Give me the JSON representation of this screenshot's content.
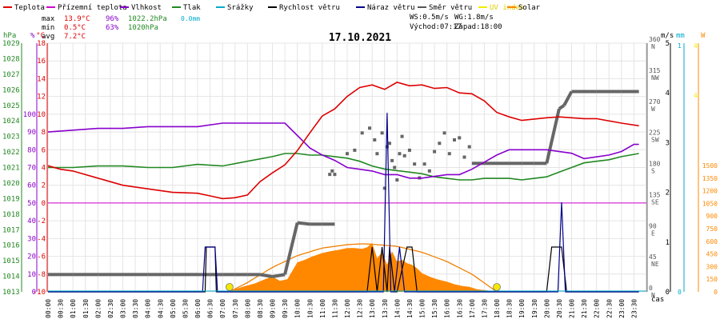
{
  "legend": [
    {
      "label": "Teplota",
      "color": "#dd0000"
    },
    {
      "label": "Přízemní teplota",
      "color": "#d000d0"
    },
    {
      "label": "Vlhkost",
      "color": "#8800cc"
    },
    {
      "label": "Tlak",
      "color": "#228822"
    },
    {
      "label": "Srážky",
      "color": "#00aacc"
    },
    {
      "label": "Rychlost větru",
      "color": "#000000"
    },
    {
      "label": "Náraz větru",
      "color": "#000088"
    },
    {
      "label": "Směr větru",
      "color": "#555555"
    },
    {
      "label": "UV index",
      "color": "#eeee00"
    },
    {
      "label": "Solar",
      "color": "#ff8800"
    }
  ],
  "stats": {
    "max_label": "max",
    "max_temp": "13.9°C",
    "max_hum": "96%",
    "max_press": "1022.2hPa",
    "max_rain": "0.0mm",
    "min_label": "min",
    "min_temp": "0.5°C",
    "min_hum": "63%",
    "min_press": "1020hPa",
    "avg_label": "avg",
    "avg_temp": "7.2°C"
  },
  "wind_info": {
    "ws": "WS:0.5m/s",
    "wg": "WG:1.8m/s",
    "sunrise": "Východ:07:17",
    "sunset": "Západ:18:00"
  },
  "colors": {
    "temp": "#dd0000",
    "ground": "#d000d0",
    "hum": "#8800cc",
    "press": "#228822",
    "rain": "#00aacc",
    "speed": "#000000",
    "gust": "#000088",
    "dir": "#666666",
    "uv": "#eeee00",
    "solar": "#ff8800",
    "solar_max": "#f08000"
  },
  "chart_data": {
    "type": "line",
    "title": "17.10.2021",
    "axes": {
      "hpa": {
        "label": "hPa",
        "ticks": [
          "1013",
          "1014",
          "1015",
          "1016",
          "1017",
          "1018",
          "1019",
          "1020",
          "1021",
          "1022",
          "1023",
          "1024",
          "1025",
          "1026",
          "1027",
          "1028",
          "1029"
        ]
      },
      "pct": {
        "label": "%",
        "ticks": [
          "0",
          "10",
          "20",
          "30",
          "40",
          "50",
          "60",
          "70",
          "80",
          "90",
          "100"
        ]
      },
      "celsius": {
        "label": "°C",
        "ticks": [
          "-10",
          "-8",
          "-6",
          "-4",
          "-2",
          "0",
          "2",
          "4",
          "6",
          "8",
          "10",
          "12",
          "14",
          "16",
          "18"
        ]
      },
      "ms": {
        "label": "m/s",
        "ticks": [
          "0",
          "1",
          "2",
          "3",
          "4",
          "5"
        ]
      },
      "dir": {
        "ticks": [
          "0",
          "45",
          "90",
          "135",
          "180",
          "225",
          "270",
          "315",
          "360"
        ],
        "names": [
          "N",
          "NE",
          "E",
          "SE",
          "S",
          "SW",
          "W",
          "NW",
          "N"
        ]
      },
      "mm": {
        "label": "mm",
        "ticks": [
          "0",
          "1"
        ]
      },
      "solar": {
        "label": "W",
        "ticks": [
          "0",
          "150",
          "300",
          "450",
          "600",
          "750",
          "900",
          "1050",
          "1200",
          "1350",
          "1500"
        ]
      },
      "x": {
        "label": "čas",
        "ticks": [
          "00:00",
          "00:30",
          "01:00",
          "01:30",
          "02:00",
          "02:30",
          "03:00",
          "03:30",
          "04:00",
          "04:30",
          "05:00",
          "05:30",
          "06:00",
          "06:30",
          "07:00",
          "07:30",
          "08:00",
          "08:30",
          "09:00",
          "09:30",
          "10:00",
          "10:30",
          "11:00",
          "11:30",
          "12:00",
          "12:30",
          "13:00",
          "13:30",
          "14:00",
          "14:30",
          "15:00",
          "15:30",
          "16:00",
          "16:30",
          "17:00",
          "17:30",
          "18:00",
          "18:30",
          "19:00",
          "19:30",
          "20:00",
          "20:30",
          "21:00",
          "21:30",
          "22:00",
          "22:30",
          "23:00",
          "23:30"
        ]
      }
    },
    "series": [
      {
        "name": "Teplota",
        "unit": "°C",
        "x": [
          0,
          0.5,
          1,
          2,
          3,
          4,
          5,
          6,
          6.5,
          7,
          7.5,
          8,
          8.5,
          9,
          9.5,
          10,
          10.5,
          11,
          11.5,
          12,
          12.5,
          13,
          13.5,
          14,
          14.5,
          15,
          15.5,
          16,
          16.5,
          17,
          17.5,
          18,
          18.5,
          19,
          20,
          20.5,
          21,
          21.5,
          22,
          23,
          23.7
        ],
        "y": [
          4.2,
          3.8,
          3.6,
          2.8,
          2.0,
          1.6,
          1.2,
          1.1,
          0.8,
          0.5,
          0.6,
          0.9,
          2.4,
          3.4,
          4.3,
          5.9,
          7.9,
          9.8,
          10.6,
          12.0,
          13.0,
          13.3,
          12.8,
          13.6,
          13.2,
          13.3,
          12.9,
          13.0,
          12.4,
          12.3,
          11.5,
          10.2,
          9.7,
          9.3,
          9.6,
          9.7,
          9.6,
          9.5,
          9.5,
          9.0,
          8.7
        ]
      },
      {
        "name": "Přízemní teplota",
        "unit": "°C",
        "x": [
          0,
          23.7
        ],
        "y": [
          0,
          0
        ]
      },
      {
        "name": "Vlhkost",
        "unit": "%",
        "x": [
          0,
          1,
          2,
          3,
          4,
          5,
          6,
          7,
          8,
          9,
          9.5,
          10,
          10.5,
          11,
          11.5,
          12,
          12.5,
          13,
          13.5,
          14,
          14.5,
          15,
          15.5,
          16,
          16.5,
          17,
          17.5,
          18,
          18.5,
          19,
          19.5,
          20,
          21,
          21.5,
          22,
          22.5,
          23,
          23.5,
          23.7
        ],
        "y": [
          90,
          91,
          92,
          92,
          93,
          93,
          93,
          95,
          95,
          95,
          95,
          88,
          81,
          77,
          74,
          70,
          69,
          68,
          66,
          66,
          64,
          64,
          65,
          66,
          66,
          69,
          73,
          77,
          80,
          80,
          80,
          80,
          78,
          75,
          76,
          77,
          79,
          83,
          83
        ]
      },
      {
        "name": "Tlak",
        "unit": "hPa",
        "x": [
          0,
          1,
          2,
          3,
          4,
          5,
          6,
          7,
          8,
          9,
          9.5,
          10,
          10.5,
          11,
          11.5,
          12,
          12.5,
          13,
          13.5,
          14,
          14.5,
          15,
          15.5,
          16,
          16.5,
          17,
          17.5,
          18,
          18.5,
          19,
          19.5,
          20,
          20.5,
          21,
          21.5,
          22,
          22.5,
          23,
          23.7
        ],
        "y": [
          1021,
          1021,
          1021.1,
          1021.1,
          1021,
          1021,
          1021.2,
          1021.1,
          1021.4,
          1021.7,
          1021.9,
          1021.9,
          1021.8,
          1021.8,
          1021.7,
          1021.6,
          1021.4,
          1021.1,
          1020.9,
          1020.8,
          1020.7,
          1020.6,
          1020.4,
          1020.3,
          1020.2,
          1020.2,
          1020.3,
          1020.3,
          1020.3,
          1020.2,
          1020.3,
          1020.4,
          1020.7,
          1021,
          1021.3,
          1021.4,
          1021.5,
          1021.7,
          1021.9
        ]
      },
      {
        "name": "Srážky",
        "unit": "mm",
        "x": [
          0,
          23.7
        ],
        "y": [
          0,
          0
        ]
      },
      {
        "name": "Rychlost větru",
        "unit": "m/s",
        "x": [
          0,
          6.3,
          6.35,
          6.7,
          6.75,
          12.8,
          13.0,
          13.2,
          13.4,
          13.6,
          13.7,
          13.9,
          14.0,
          14.4,
          14.6,
          14.8,
          20.0,
          20.2,
          20.6,
          20.8,
          23.7
        ],
        "y": [
          0,
          0,
          0.9,
          0.9,
          0,
          0,
          0.9,
          0,
          0.9,
          0,
          0.9,
          0,
          0,
          0.9,
          0.9,
          0,
          0,
          0.9,
          0.9,
          0,
          0
        ]
      },
      {
        "name": "Náraz větru",
        "unit": "m/s",
        "x": [
          0,
          6.2,
          6.3,
          6.4,
          6.6,
          6.7,
          6.8,
          13.45,
          13.6,
          13.75,
          13.9,
          14.1,
          14.3,
          20.45,
          20.6,
          20.75,
          23.7
        ],
        "y": [
          0,
          0,
          0.9,
          0.9,
          0.9,
          0.9,
          0,
          0,
          3.6,
          0,
          0,
          0.9,
          0,
          0,
          1.8,
          0,
          0
        ]
      },
      {
        "name": "Směr větru",
        "unit": "°",
        "x": [
          0,
          1,
          2,
          3,
          4,
          5,
          6,
          6.5,
          7,
          7.5,
          8,
          8.5,
          9,
          9.5,
          10,
          10.5,
          11,
          11.5,
          17,
          17.5,
          18,
          18.5,
          19,
          19.5,
          20,
          20.5,
          20.7,
          21,
          22,
          23,
          23.7
        ],
        "y": [
          25,
          25,
          25,
          25,
          25,
          25,
          25,
          25,
          25,
          25,
          25,
          25,
          22,
          25,
          100,
          98,
          98,
          98,
          186,
          186,
          186,
          186,
          186,
          186,
          186,
          265,
          270,
          290,
          290,
          290,
          290
        ]
      },
      {
        "name": "Směr větru (body)",
        "unit": "°",
        "x": [
          11.3,
          11.4,
          11.5,
          12.0,
          12.3,
          12.6,
          12.9,
          13.1,
          13.2,
          13.4,
          13.5,
          13.6,
          13.7,
          13.8,
          13.9,
          14.0,
          14.1,
          14.2,
          14.3,
          14.5,
          14.7,
          14.9,
          15.1,
          15.3,
          15.5,
          15.7,
          15.9,
          16.1,
          16.3,
          16.5,
          16.7,
          16.9
        ],
        "y": [
          170,
          175,
          170,
          200,
          205,
          230,
          237,
          220,
          200,
          230,
          150,
          210,
          215,
          190,
          180,
          162,
          200,
          225,
          197,
          205,
          185,
          165,
          185,
          175,
          203,
          215,
          230,
          200,
          220,
          223,
          195,
          210
        ]
      },
      {
        "name": "UV index",
        "x": [
          0,
          23.7
        ],
        "y": [
          0,
          0
        ]
      },
      {
        "name": "Solar",
        "unit": "W",
        "x": [
          7.3,
          7.8,
          8.3,
          8.7,
          9.0,
          9.3,
          9.6,
          9.8,
          10.0,
          10.3,
          10.6,
          11.0,
          11.3,
          11.7,
          12.0,
          12.3,
          12.6,
          12.8,
          13.0,
          13.2,
          13.4,
          13.6,
          13.8,
          14.0,
          14.2,
          14.4,
          14.6,
          14.8,
          15.0,
          15.3,
          15.6,
          16.0,
          16.3,
          16.6,
          16.9,
          17.2,
          17.5,
          17.8
        ],
        "y": [
          10,
          60,
          100,
          150,
          180,
          130,
          150,
          250,
          350,
          380,
          420,
          460,
          480,
          500,
          520,
          520,
          510,
          530,
          580,
          400,
          470,
          320,
          480,
          360,
          380,
          340,
          320,
          280,
          220,
          180,
          150,
          120,
          90,
          70,
          60,
          30,
          20,
          10
        ]
      },
      {
        "name": "Solar max",
        "unit": "W",
        "x": [
          7.28,
          8,
          9,
          10,
          11,
          12,
          12.6,
          13,
          14,
          15,
          16,
          17,
          18.0
        ],
        "y": [
          0,
          110,
          290,
          430,
          520,
          560,
          570,
          565,
          540,
          470,
          360,
          210,
          0
        ]
      }
    ],
    "markers": [
      {
        "name": "Východ",
        "x": 7.28
      },
      {
        "name": "Západ",
        "x": 18.0
      }
    ]
  }
}
